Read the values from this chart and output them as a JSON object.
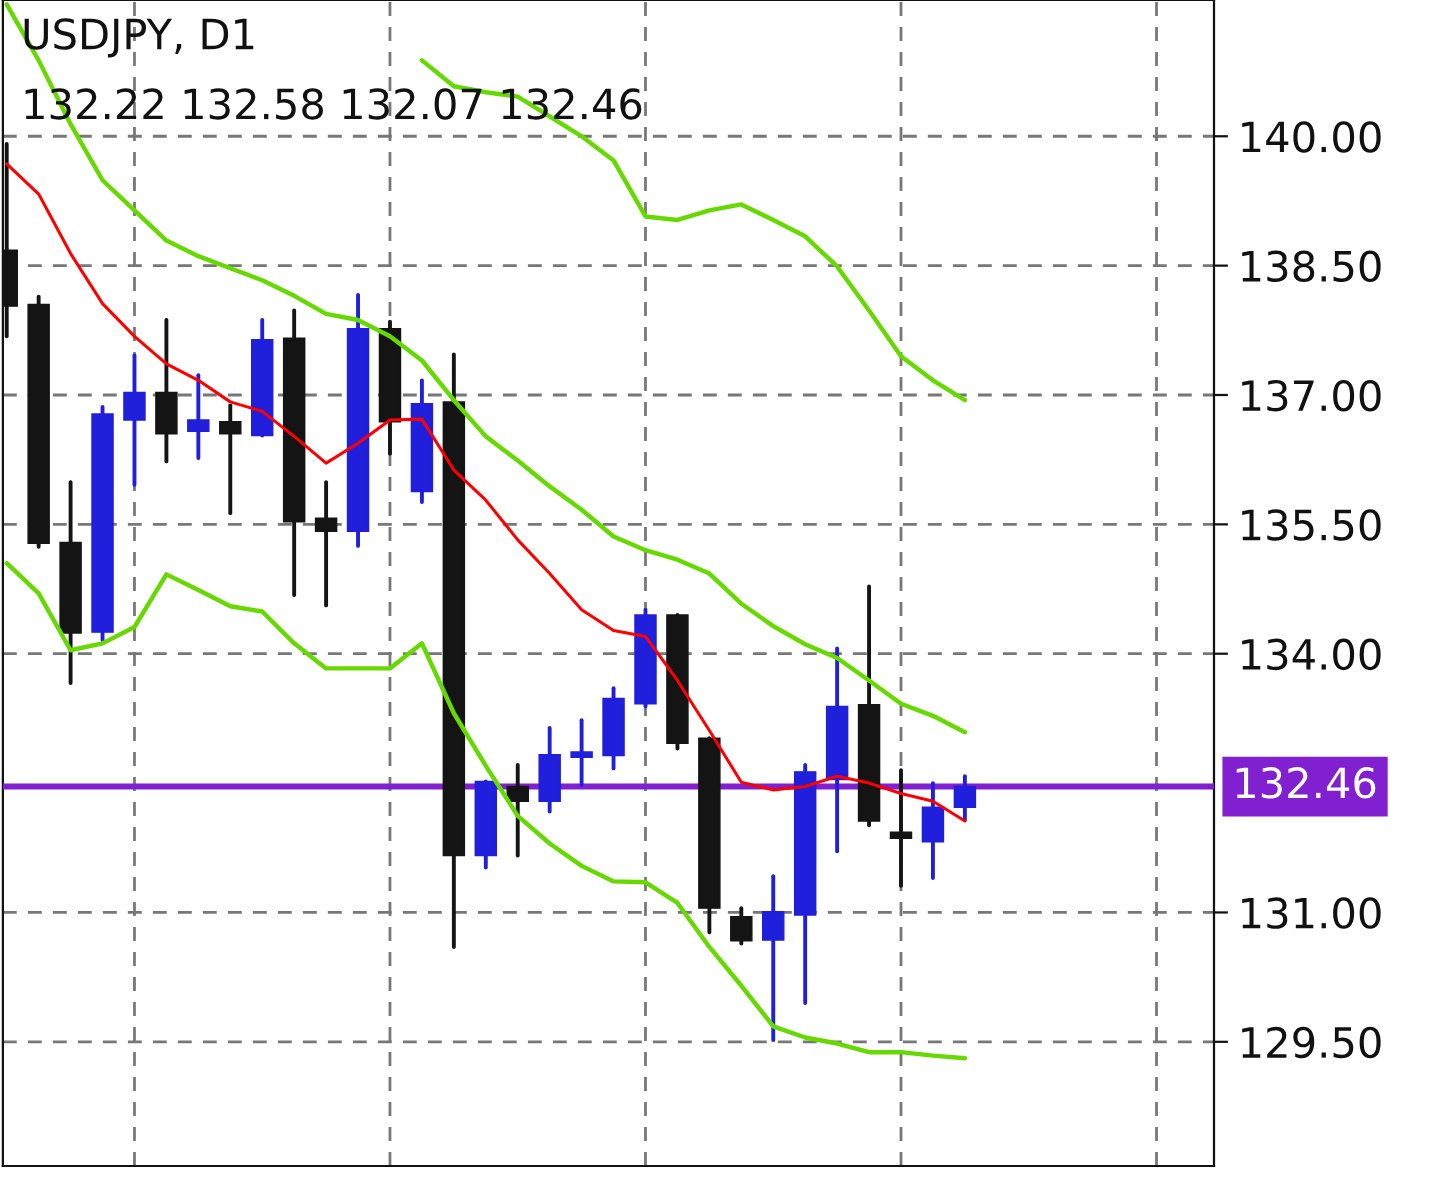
{
  "chart_data": {
    "type": "candlestick",
    "title": "USDJPY, D1",
    "subtitle": "132.22 132.58 132.07 132.46",
    "categories": [
      null,
      null,
      null,
      null,
      null,
      null,
      null,
      null,
      null,
      null,
      null,
      null,
      null,
      null,
      null,
      null,
      null,
      null,
      null,
      null,
      null,
      null,
      null,
      null,
      null,
      null,
      null,
      null,
      null,
      null,
      null
    ],
    "ohlc": [
      [
        138.68,
        139.91,
        137.68,
        138.03
      ],
      [
        138.05,
        138.14,
        135.24,
        135.28
      ],
      [
        135.29,
        135.99,
        133.66,
        134.24
      ],
      [
        134.25,
        136.86,
        134.16,
        136.78
      ],
      [
        136.71,
        137.46,
        135.96,
        137.03
      ],
      [
        137.03,
        137.87,
        136.23,
        136.55
      ],
      [
        136.58,
        137.23,
        136.27,
        136.71
      ],
      [
        136.69,
        136.88,
        135.63,
        136.55
      ],
      [
        136.53,
        137.87,
        136.53,
        137.64
      ],
      [
        137.66,
        137.98,
        134.68,
        135.53
      ],
      [
        135.57,
        135.99,
        134.56,
        135.42
      ],
      [
        135.42,
        138.16,
        135.25,
        137.77
      ],
      [
        137.77,
        137.85,
        136.32,
        136.69
      ],
      [
        135.88,
        137.17,
        135.76,
        136.9
      ],
      [
        136.92,
        137.47,
        130.6,
        131.66
      ],
      [
        131.66,
        132.52,
        131.52,
        132.52
      ],
      [
        132.46,
        132.71,
        131.66,
        132.29
      ],
      [
        132.29,
        133.14,
        132.17,
        132.83
      ],
      [
        132.8,
        133.23,
        132.48,
        132.86
      ],
      [
        132.82,
        133.6,
        132.67,
        133.48
      ],
      [
        133.42,
        134.51,
        133.39,
        134.45
      ],
      [
        134.45,
        134.45,
        132.9,
        132.96
      ],
      [
        133.02,
        133.02,
        130.77,
        131.05
      ],
      [
        130.95,
        131.05,
        130.64,
        130.67
      ],
      [
        130.68,
        131.42,
        129.52,
        131.01
      ],
      [
        130.97,
        132.71,
        129.95,
        132.63
      ],
      [
        132.54,
        134.06,
        131.71,
        133.39
      ],
      [
        133.41,
        134.78,
        132.01,
        132.06
      ],
      [
        131.93,
        132.65,
        131.31,
        131.86
      ],
      [
        131.82,
        132.5,
        131.4,
        132.22
      ],
      [
        132.22,
        132.58,
        132.07,
        132.46
      ]
    ],
    "colors": [
      "#141414",
      "#141414",
      "#141414",
      "#1f1fdc",
      "#1f1fdc",
      "#141414",
      "#1f1fdc",
      "#141414",
      "#1f1fdc",
      "#141414",
      "#141414",
      "#1f1fdc",
      "#141414",
      "#1f1fdc",
      "#141414",
      "#1f1fdc",
      "#141414",
      "#1f1fdc",
      "#1f1fdc",
      "#1f1fdc",
      "#1f1fdc",
      "#141414",
      "#141414",
      "#141414",
      "#1f1fdc",
      "#1f1fdc",
      "#1f1fdc",
      "#141414",
      "#141414",
      "#1f1fdc",
      "#1f1fdc"
    ],
    "series": [
      {
        "type": "line",
        "color": "#ff0000",
        "values": [
          139.68,
          139.33,
          138.64,
          138.06,
          137.68,
          137.36,
          137.17,
          136.92,
          136.81,
          136.52,
          136.21,
          136.44,
          136.71,
          136.72,
          136.13,
          135.78,
          135.32,
          134.93,
          134.51,
          134.27,
          134.2,
          133.69,
          133.11,
          132.51,
          132.42,
          132.46,
          132.58,
          132.5,
          132.38,
          132.29,
          132.06
        ]
      },
      {
        "type": "line",
        "color": "#66d900",
        "values": [
          null,
          null,
          null,
          null,
          null,
          null,
          null,
          null,
          null,
          null,
          null,
          null,
          null,
          140.88,
          140.58,
          140.51,
          140.46,
          140.23,
          140.0,
          139.72,
          139.07,
          139.03,
          139.14,
          139.21,
          139.03,
          138.84,
          138.49,
          137.98,
          137.45,
          137.17,
          136.94
        ]
      },
      {
        "type": "line",
        "color": "#66d900",
        "values": [
          141.53,
          140.88,
          140.14,
          139.49,
          139.14,
          138.79,
          138.61,
          138.47,
          138.33,
          138.15,
          137.94,
          137.87,
          137.68,
          137.4,
          136.94,
          136.52,
          136.24,
          135.94,
          135.67,
          135.36,
          135.2,
          135.09,
          134.93,
          134.58,
          134.32,
          134.11,
          133.95,
          133.69,
          133.42,
          133.28,
          133.09
        ]
      },
      {
        "type": "line",
        "color": "#66d900",
        "values": [
          135.05,
          134.7,
          134.04,
          134.12,
          134.31,
          134.92,
          134.74,
          134.55,
          134.49,
          134.12,
          133.83,
          133.83,
          133.83,
          134.12,
          133.31,
          132.7,
          132.12,
          131.8,
          131.54,
          131.36,
          131.35,
          131.11,
          130.6,
          130.15,
          129.68,
          129.55,
          129.48,
          129.38,
          129.38,
          129.34,
          129.31
        ]
      }
    ],
    "ylim": [
      128.06,
      141.58
    ],
    "yticks": [
      {
        "value": 129.5,
        "label": "129.50"
      },
      {
        "value": 131,
        "label": "131.00"
      },
      {
        "value": 134,
        "label": "134.00"
      },
      {
        "value": 135.5,
        "label": "135.50"
      },
      {
        "value": 137,
        "label": "137.00"
      },
      {
        "value": 138.5,
        "label": "138.50"
      },
      {
        "value": 140,
        "label": "140.00"
      }
    ],
    "ref_lines": [
      {
        "axis": "y",
        "value": 132.46,
        "label": "132.46",
        "color": "#8020d0"
      }
    ],
    "grid": true,
    "legend": false,
    "tick_labels": "y"
  }
}
